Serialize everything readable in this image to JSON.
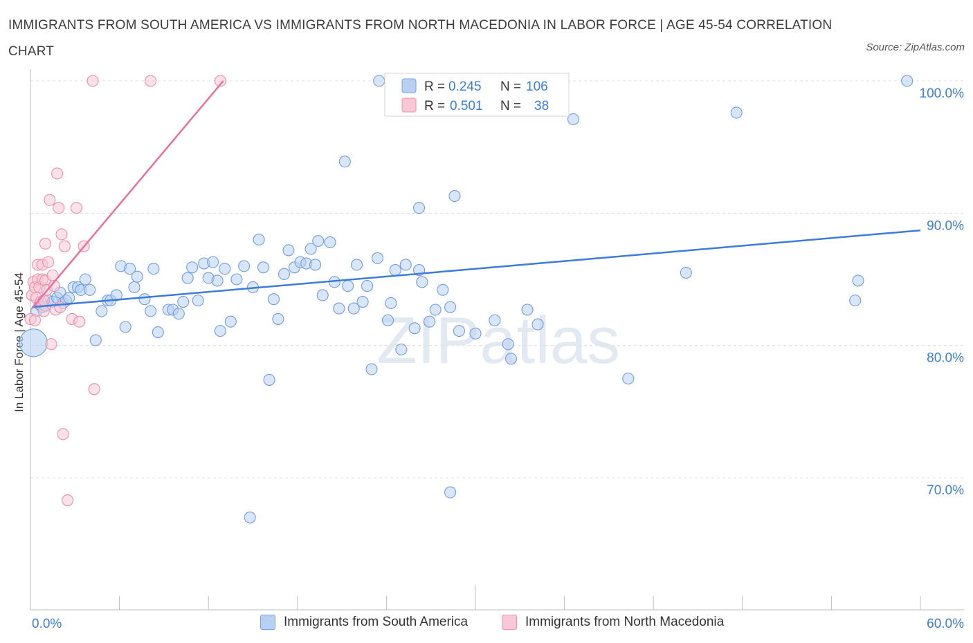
{
  "title": "IMMIGRANTS FROM SOUTH AMERICA VS IMMIGRANTS FROM NORTH MACEDONIA IN LABOR FORCE | AGE 45-54 CORRELATION CHART",
  "source": "Source: ZipAtlas.com",
  "watermark": "ZIPatlas",
  "colors": {
    "blue": "#3b7dd8",
    "blue_fill": "#b9d0f3",
    "pink": "#e8709a",
    "pink_fill": "#f8c8d6",
    "tick_label": "#3b7dd8"
  },
  "chart_data": {
    "type": "scatter",
    "xlabel": "",
    "ylabel": "In Labor Force | Age 45-54",
    "xlim": [
      0,
      60
    ],
    "ylim": [
      60,
      100
    ],
    "x_tick_labels": [
      "0.0%",
      "60.0%"
    ],
    "y_ticks": [
      70,
      80,
      90,
      100
    ],
    "y_tick_labels": [
      "70.0%",
      "80.0%",
      "90.0%",
      "100.0%"
    ],
    "grid": true,
    "legend_top": [
      {
        "r_label": "R =",
        "r_value": "0.245",
        "n_label": "N =",
        "n_value": "106"
      },
      {
        "r_label": "R =",
        "r_value": "0.501",
        "n_label": "N =",
        "n_value": "38"
      }
    ],
    "series": [
      {
        "name": "Immigrants from South America",
        "color": "#3b7dd8",
        "trend": [
          [
            0.1,
            82.9
          ],
          [
            60,
            88.7
          ]
        ],
        "points": [
          [
            0.2,
            80.2
          ],
          [
            0.4,
            82.6
          ],
          [
            0.6,
            83.1
          ],
          [
            0.8,
            82.9
          ],
          [
            1.0,
            83.0
          ],
          [
            1.2,
            83.4
          ],
          [
            1.5,
            83.3
          ],
          [
            1.8,
            83.6
          ],
          [
            2.0,
            84.0
          ],
          [
            2.2,
            83.2
          ],
          [
            2.4,
            83.4
          ],
          [
            2.6,
            83.6
          ],
          [
            2.9,
            84.4
          ],
          [
            3.2,
            84.4
          ],
          [
            3.4,
            84.2
          ],
          [
            3.7,
            85.0
          ],
          [
            4.0,
            84.2
          ],
          [
            4.4,
            80.4
          ],
          [
            4.8,
            82.6
          ],
          [
            5.2,
            83.4
          ],
          [
            5.4,
            83.4
          ],
          [
            5.8,
            83.8
          ],
          [
            6.1,
            86.0
          ],
          [
            6.4,
            81.4
          ],
          [
            6.7,
            85.8
          ],
          [
            7.0,
            84.4
          ],
          [
            7.2,
            85.2
          ],
          [
            7.7,
            83.5
          ],
          [
            8.1,
            82.6
          ],
          [
            8.3,
            85.8
          ],
          [
            8.6,
            81.0
          ],
          [
            9.3,
            82.7
          ],
          [
            9.6,
            82.7
          ],
          [
            10.0,
            82.4
          ],
          [
            10.3,
            83.3
          ],
          [
            10.6,
            85.1
          ],
          [
            10.9,
            85.9
          ],
          [
            11.3,
            83.4
          ],
          [
            11.7,
            86.2
          ],
          [
            12.0,
            85.1
          ],
          [
            12.3,
            86.3
          ],
          [
            12.6,
            84.9
          ],
          [
            12.8,
            81.1
          ],
          [
            13.1,
            85.8
          ],
          [
            13.5,
            81.8
          ],
          [
            13.9,
            85.0
          ],
          [
            14.4,
            86.0
          ],
          [
            15.0,
            84.4
          ],
          [
            15.4,
            88.0
          ],
          [
            15.7,
            85.9
          ],
          [
            16.1,
            77.4
          ],
          [
            16.4,
            83.5
          ],
          [
            16.7,
            82.0
          ],
          [
            17.1,
            85.4
          ],
          [
            17.4,
            87.2
          ],
          [
            17.8,
            85.9
          ],
          [
            18.2,
            86.3
          ],
          [
            18.6,
            86.2
          ],
          [
            18.9,
            87.3
          ],
          [
            19.2,
            86.1
          ],
          [
            19.4,
            87.9
          ],
          [
            19.7,
            83.8
          ],
          [
            20.2,
            87.8
          ],
          [
            20.5,
            84.8
          ],
          [
            20.8,
            82.8
          ],
          [
            21.4,
            84.5
          ],
          [
            21.8,
            82.8
          ],
          [
            22.0,
            86.1
          ],
          [
            22.4,
            83.3
          ],
          [
            22.7,
            84.5
          ],
          [
            23.0,
            78.2
          ],
          [
            23.4,
            86.6
          ],
          [
            24.1,
            81.9
          ],
          [
            24.3,
            83.2
          ],
          [
            24.6,
            85.7
          ],
          [
            25.0,
            79.7
          ],
          [
            25.3,
            86.1
          ],
          [
            25.9,
            81.3
          ],
          [
            26.2,
            85.7
          ],
          [
            26.4,
            84.8
          ],
          [
            26.9,
            81.8
          ],
          [
            27.3,
            82.7
          ],
          [
            27.8,
            84.2
          ],
          [
            28.3,
            82.9
          ],
          [
            28.9,
            81.1
          ],
          [
            30.0,
            80.9
          ],
          [
            31.3,
            81.9
          ],
          [
            32.2,
            80.1
          ],
          [
            32.4,
            79.0
          ],
          [
            33.5,
            82.7
          ],
          [
            34.2,
            81.6
          ],
          [
            21.2,
            93.9
          ],
          [
            23.5,
            100.0
          ],
          [
            25.3,
            100.0
          ],
          [
            26.2,
            90.4
          ],
          [
            28.6,
            91.3
          ],
          [
            28.3,
            68.9
          ],
          [
            35.3,
            100.0
          ],
          [
            36.6,
            97.1
          ],
          [
            40.3,
            77.5
          ],
          [
            44.2,
            85.5
          ],
          [
            47.6,
            97.6
          ],
          [
            55.6,
            83.4
          ],
          [
            55.8,
            84.9
          ],
          [
            59.1,
            100.0
          ],
          [
            14.8,
            67.0
          ]
        ]
      },
      {
        "name": "Immigrants from North Macedonia",
        "color": "#e8709a",
        "trend": [
          [
            0.1,
            82.8
          ],
          [
            13.0,
            100.0
          ]
        ],
        "points": [
          [
            0.0,
            82.0
          ],
          [
            0.1,
            83.8
          ],
          [
            0.2,
            84.8
          ],
          [
            0.3,
            84.4
          ],
          [
            0.3,
            81.9
          ],
          [
            0.4,
            83.6
          ],
          [
            0.5,
            86.1
          ],
          [
            0.5,
            85.0
          ],
          [
            0.6,
            84.4
          ],
          [
            0.7,
            83.3
          ],
          [
            0.8,
            86.1
          ],
          [
            0.8,
            85.0
          ],
          [
            0.9,
            82.6
          ],
          [
            1.0,
            87.7
          ],
          [
            1.0,
            84.9
          ],
          [
            1.1,
            84.2
          ],
          [
            1.2,
            86.3
          ],
          [
            1.3,
            91.0
          ],
          [
            1.4,
            80.1
          ],
          [
            1.5,
            85.3
          ],
          [
            1.6,
            84.5
          ],
          [
            1.7,
            82.7
          ],
          [
            1.8,
            93.0
          ],
          [
            1.9,
            90.4
          ],
          [
            2.0,
            82.9
          ],
          [
            2.1,
            88.4
          ],
          [
            2.2,
            73.3
          ],
          [
            2.3,
            87.5
          ],
          [
            2.5,
            68.3
          ],
          [
            2.8,
            82.0
          ],
          [
            3.3,
            81.8
          ],
          [
            3.1,
            90.4
          ],
          [
            3.6,
            87.5
          ],
          [
            4.3,
            76.7
          ],
          [
            4.2,
            100.0
          ],
          [
            8.1,
            100.0
          ],
          [
            12.8,
            100.0
          ],
          [
            0.9,
            83.4
          ]
        ]
      }
    ]
  },
  "legend_bottom": [
    "Immigrants from South America",
    "Immigrants from North Macedonia"
  ]
}
